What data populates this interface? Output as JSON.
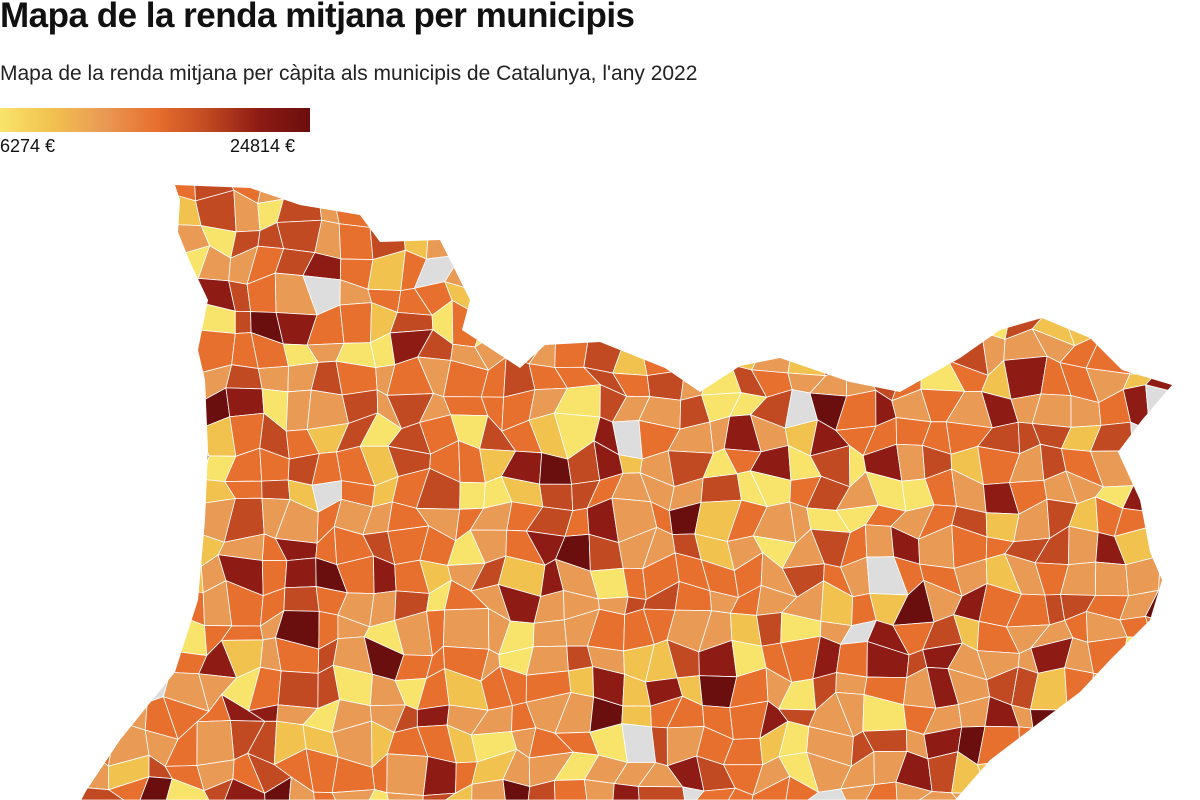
{
  "title": "Mapa de la renda mitjana per municipis",
  "subtitle": "Mapa de la renda mitjana per càpita als municipis de Catalunya, l'any 2022",
  "legend": {
    "min_label": "6274 €",
    "max_label": "24814 €",
    "min_value": 6274,
    "max_value": 24814,
    "colors": [
      "#f8e46a",
      "#f2c24f",
      "#e99a55",
      "#e8702e",
      "#c24a22",
      "#8e1b14",
      "#6b0e0e"
    ],
    "no_data_color": "#dddddd"
  }
}
